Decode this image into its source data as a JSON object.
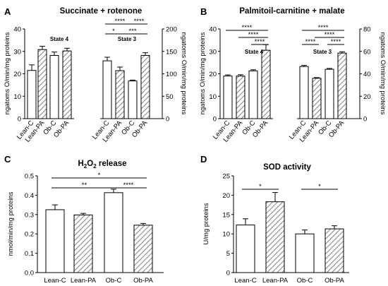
{
  "colors": {
    "control_fill": "#ffffff",
    "pa_hatch": "#8a8a8a",
    "stroke": "#000000"
  },
  "chart_data": [
    {
      "panel": "A",
      "type": "bar",
      "title": "Succinate + rotenone",
      "ylabel_left": "ngatoms O/min/mg proteins",
      "ylabel_right": "ngatoms O/min/mg proteins",
      "ylim_left": [
        0,
        40
      ],
      "ylim_right": [
        0,
        200
      ],
      "yticks_left": [
        "0",
        "10",
        "20",
        "30",
        "40"
      ],
      "yticks_right": [
        "0",
        "50",
        "100",
        "150",
        "200"
      ],
      "groups": [
        {
          "label": "State 4",
          "axis": "left",
          "categories": [
            "Lean-C",
            "Lean-PA",
            "Ob-C",
            "Ob-PA"
          ],
          "values": [
            21.5,
            30.8,
            28.2,
            30.2
          ],
          "errors": [
            2.5,
            1.5,
            1.5,
            1.2
          ]
        },
        {
          "label": "State 3",
          "axis": "right",
          "categories": [
            "Lean-C",
            "Lean-PA",
            "Ob-C",
            "Ob-PA"
          ],
          "values": [
            129,
            107,
            84,
            141
          ],
          "errors": [
            8,
            8,
            2,
            6
          ]
        }
      ],
      "significance": [
        {
          "group": 1,
          "from": 0,
          "to": 1,
          "label": "*"
        },
        {
          "group": 1,
          "from": 1,
          "to": 3,
          "label": "***"
        },
        {
          "group": 1,
          "from": 0,
          "to": 2,
          "label": "****"
        },
        {
          "group": 1,
          "from": 2,
          "to": 3,
          "label": "****"
        }
      ]
    },
    {
      "panel": "B",
      "type": "bar",
      "title": "Palmitoil-carnitine + malate",
      "ylabel_left": "ngatoms O/min/mg proteins",
      "ylabel_right": "ngatoms O/min/mg proteins",
      "ylim_left": [
        0,
        40
      ],
      "ylim_right": [
        0,
        80
      ],
      "yticks_left": [
        "0",
        "10",
        "20",
        "30",
        "40"
      ],
      "yticks_right": [
        "0",
        "20",
        "40",
        "60",
        "80"
      ],
      "groups": [
        {
          "label": "State 4",
          "axis": "left",
          "categories": [
            "Lean-C",
            "Lean-PA",
            "Ob-C",
            "Ob-PA"
          ],
          "values": [
            19,
            19,
            21.3,
            30.5
          ],
          "errors": [
            0.5,
            0.6,
            0.5,
            2.5
          ]
        },
        {
          "label": "State 3",
          "axis": "right",
          "categories": [
            "Lean-C",
            "Lean-PA",
            "Ob-C",
            "Ob-PA"
          ],
          "values": [
            46.5,
            36,
            44,
            58.5
          ],
          "errors": [
            1,
            0.6,
            0.8,
            1.2
          ]
        }
      ],
      "significance": [
        {
          "group": 0,
          "from": 2,
          "to": 3,
          "label": "****"
        },
        {
          "group": 0,
          "from": 1,
          "to": 3,
          "label": "****"
        },
        {
          "group": 0,
          "from": 0,
          "to": 3,
          "label": "****"
        },
        {
          "group": 1,
          "from": 0,
          "to": 1,
          "label": "****"
        },
        {
          "group": 1,
          "from": 2,
          "to": 3,
          "label": "****"
        },
        {
          "group": 1,
          "from": 1,
          "to": 3,
          "label": "****"
        },
        {
          "group": 1,
          "from": 0,
          "to": 3,
          "label": "****"
        }
      ]
    },
    {
      "panel": "C",
      "type": "bar",
      "title_main": "H",
      "title_sub1": "2",
      "title_mid": "O",
      "title_sub2": "2",
      "title_end": " release",
      "ylabel": "nmol/min/mg proteins",
      "ylim": [
        0,
        0.5
      ],
      "yticks": [
        "0.0",
        "0.1",
        "0.2",
        "0.3",
        "0.4",
        "0.5"
      ],
      "categories": [
        "Lean-C",
        "Lean-PA",
        "Ob-C",
        "Ob-PA"
      ],
      "values": [
        0.325,
        0.298,
        0.413,
        0.245
      ],
      "errors": [
        0.025,
        0.008,
        0.018,
        0.009
      ],
      "significance": [
        {
          "from": 2,
          "to": 3,
          "label": "****"
        },
        {
          "from": 0,
          "to": 2,
          "label": "**"
        },
        {
          "from": 0,
          "to": 3,
          "label": "*"
        }
      ]
    },
    {
      "panel": "D",
      "type": "bar",
      "title": "SOD activity",
      "ylabel": "U/mg proteins",
      "ylim": [
        0,
        25
      ],
      "yticks": [
        "0",
        "5",
        "10",
        "15",
        "20",
        "25"
      ],
      "categories": [
        "Lean-C",
        "Lean-PA",
        "Ob-C",
        "Ob-PA"
      ],
      "values": [
        12.3,
        18.3,
        10.0,
        11.3
      ],
      "errors": [
        1.6,
        2.4,
        1.0,
        0.8
      ],
      "significance": [
        {
          "from": 0,
          "to": 1,
          "label": "*"
        },
        {
          "from": 2,
          "to": 3,
          "label": "*"
        }
      ]
    }
  ]
}
